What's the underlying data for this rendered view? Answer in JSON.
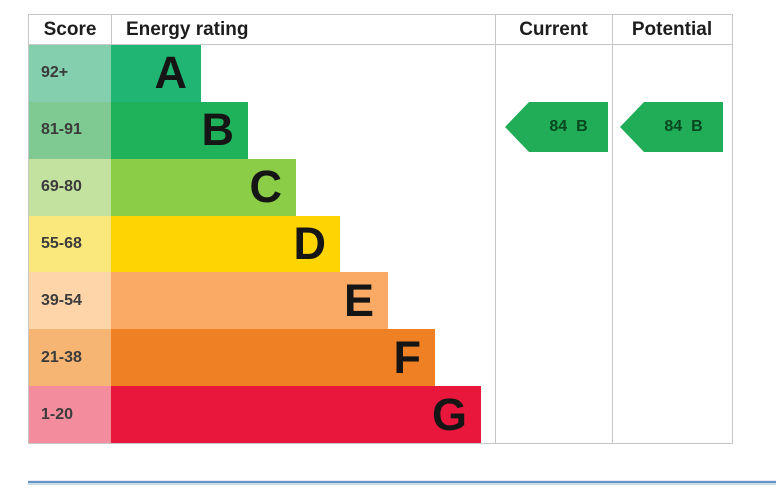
{
  "table": {
    "headers": {
      "score": "Score",
      "rating": "Energy rating",
      "current": "Current",
      "potential": "Potential"
    }
  },
  "chart_data": {
    "type": "bar",
    "title": "Energy rating",
    "orientation": "horizontal",
    "grid": false,
    "legend_position": "none",
    "bands": [
      {
        "letter": "A",
        "score_range": "92+",
        "bar_color": "#20b573",
        "score_bg": "#84cfae"
      },
      {
        "letter": "B",
        "score_range": "81-91",
        "bar_color": "#1fb25a",
        "score_bg": "#7fca92"
      },
      {
        "letter": "C",
        "score_range": "69-80",
        "bar_color": "#8ccd47",
        "score_bg": "#c4e29f"
      },
      {
        "letter": "D",
        "score_range": "55-68",
        "bar_color": "#ffd500",
        "score_bg": "#fae87d"
      },
      {
        "letter": "E",
        "score_range": "39-54",
        "bar_color": "#fbaa65",
        "score_bg": "#fdd5a9"
      },
      {
        "letter": "F",
        "score_range": "21-38",
        "bar_color": "#ef8023",
        "score_bg": "#f6b573"
      },
      {
        "letter": "G",
        "score_range": "1-20",
        "bar_color": "#e9173c",
        "score_bg": "#f38d9e"
      }
    ],
    "current": {
      "value": "84",
      "band": "B",
      "arrow_color": "#21ad58"
    },
    "potential": {
      "value": "84",
      "band": "B",
      "arrow_color": "#21ad58"
    },
    "arrow_text_color": "#07461f"
  }
}
